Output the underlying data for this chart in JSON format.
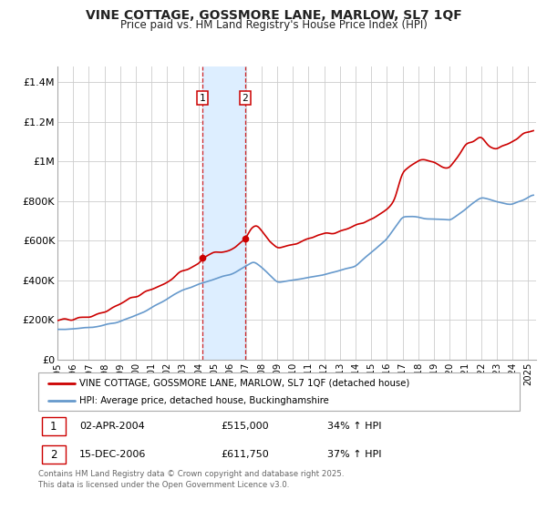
{
  "title": "VINE COTTAGE, GOSSMORE LANE, MARLOW, SL7 1QF",
  "subtitle": "Price paid vs. HM Land Registry's House Price Index (HPI)",
  "red_legend": "VINE COTTAGE, GOSSMORE LANE, MARLOW, SL7 1QF (detached house)",
  "blue_legend": "HPI: Average price, detached house, Buckinghamshire",
  "transaction1_date": "02-APR-2004",
  "transaction1_price": "£515,000",
  "transaction1_hpi": "34% ↑ HPI",
  "transaction1_year": 2004.25,
  "transaction1_value": 515000,
  "transaction2_date": "15-DEC-2006",
  "transaction2_price": "£611,750",
  "transaction2_hpi": "37% ↑ HPI",
  "transaction2_year": 2006.96,
  "transaction2_value": 611750,
  "ylabel_ticks": [
    "£0",
    "£200K",
    "£400K",
    "£600K",
    "£800K",
    "£1M",
    "£1.2M",
    "£1.4M"
  ],
  "ylabel_values": [
    0,
    200000,
    400000,
    600000,
    800000,
    1000000,
    1200000,
    1400000
  ],
  "ylim": [
    0,
    1480000
  ],
  "xlim_start": 1995.0,
  "xlim_end": 2025.5,
  "red_color": "#cc0000",
  "blue_color": "#6699cc",
  "shading_color": "#ddeeff",
  "dashed_color": "#cc0000",
  "footer": "Contains HM Land Registry data © Crown copyright and database right 2025.\nThis data is licensed under the Open Government Licence v3.0.",
  "background_color": "#ffffff",
  "grid_color": "#cccccc"
}
